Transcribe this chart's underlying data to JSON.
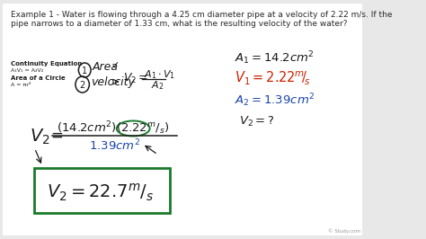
{
  "background_color": "#e8e8e8",
  "inner_bg": "#f5f5f2",
  "title_text": "Example 1 - Water is flowing through a 4.25 cm diameter pipe at a velocity of 2.22 m/s. If the\npipe narrows to a diameter of 1.33 cm, what is the resulting velocity of the water?",
  "title_fontsize": 6.5,
  "title_color": "#2a2a2a",
  "left_label1": "Continuity Equation",
  "left_label2": "A₁V₁ = A₂V₂",
  "left_label3": "Area of a Circle",
  "left_label4": "A = πr²",
  "hw": "#1a1a1a",
  "red": "#cc2200",
  "blue": "#1a44aa",
  "green": "#1a7a2a",
  "watermark": "© Study.com"
}
